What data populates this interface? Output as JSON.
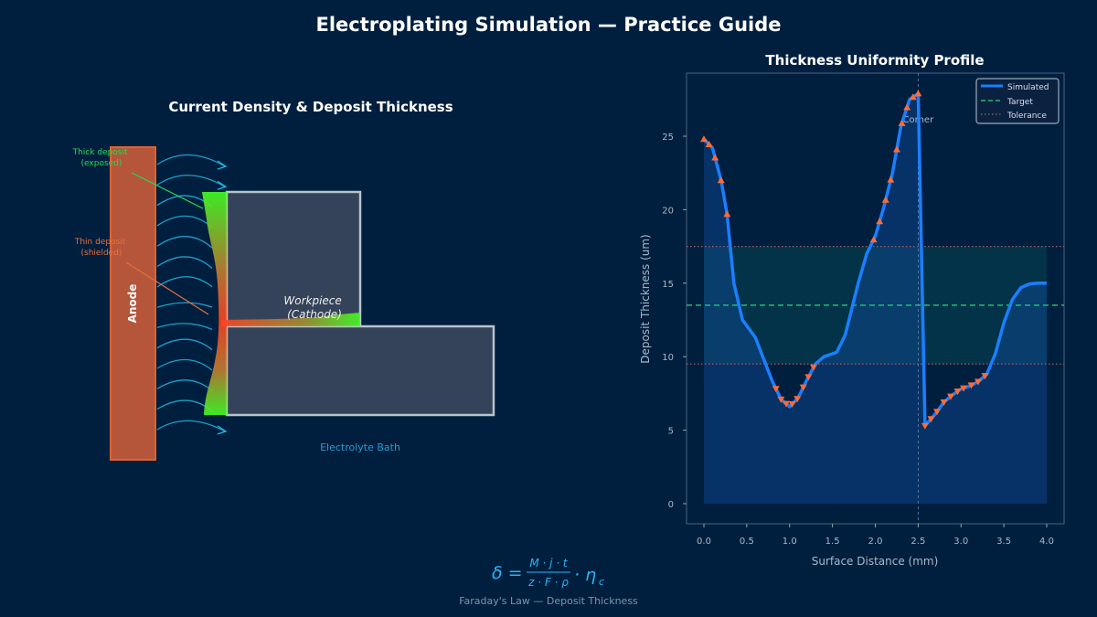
{
  "title": "Electroplating Simulation — Practice Guide",
  "diagram": {
    "title": "Current Density & Deposit Thickness",
    "anode_label": "Anode",
    "workpiece_label": [
      "Workpiece",
      "(Cathode)"
    ],
    "bath_label": "Electrolyte Bath",
    "thick_label": [
      "Thick deposit",
      "(exposed)"
    ],
    "thin_label": [
      "Thin deposit",
      "(shielded)"
    ],
    "colors": {
      "anode": "#b5553a",
      "workpiece": "#34435a",
      "thick": "#44ff22",
      "thin": "#ff4422",
      "field": "#1fb8e0"
    }
  },
  "formula": {
    "text": "δ = (M·j·t)/(z·F·ρ)·η_c",
    "lhs": "δ =",
    "num": "M · j · t",
    "den": "z · F · ρ",
    "tail": "· η",
    "sub": "c",
    "caption": "Faraday's Law — Deposit Thickness"
  },
  "chart_data": {
    "type": "line",
    "title": "Thickness Uniformity Profile",
    "xlabel": "Surface Distance (mm)",
    "ylabel": "Deposit Thickness (um)",
    "xlim": [
      -0.2,
      4.2
    ],
    "ylim": [
      -1.4,
      29.3
    ],
    "xticks": [
      "0.0",
      "0.5",
      "1.0",
      "1.5",
      "2.0",
      "2.5",
      "3.0",
      "3.5",
      "4.0"
    ],
    "yticks": [
      "0",
      "5",
      "10",
      "15",
      "20",
      "25"
    ],
    "legend": {
      "position": "top-right",
      "entries": [
        "Simulated",
        "Target",
        "Tolerance"
      ]
    },
    "annotation": {
      "text": "Corner",
      "x": 2.5
    },
    "target": 13.5,
    "tolerance": [
      9.5,
      17.5
    ],
    "series": [
      {
        "name": "Simulated",
        "color": "#1a7fff",
        "x": [
          0,
          0.1,
          0.2,
          0.27,
          0.35,
          0.45,
          0.6,
          0.7,
          0.8,
          0.9,
          1.0,
          1.1,
          1.2,
          1.3,
          1.4,
          1.55,
          1.65,
          1.8,
          1.9,
          2.0,
          2.1,
          2.2,
          2.3,
          2.4,
          2.5,
          2.58,
          2.7,
          2.8,
          2.9,
          3.0,
          3.1,
          3.2,
          3.3,
          3.4,
          3.5,
          3.6,
          3.7,
          3.8,
          3.9,
          4.0
        ],
        "y": [
          24.8,
          24.2,
          22.0,
          19.7,
          15.0,
          12.5,
          11.3,
          9.8,
          8.3,
          7.1,
          6.6,
          7.2,
          8.4,
          9.5,
          10.0,
          10.3,
          11.5,
          15.0,
          17.0,
          18.2,
          20.2,
          22.5,
          25.7,
          27.5,
          27.9,
          5.3,
          6.1,
          6.9,
          7.4,
          7.8,
          8.0,
          8.3,
          8.8,
          10.2,
          12.3,
          13.9,
          14.7,
          14.95,
          15.0,
          15.0
        ]
      }
    ],
    "markers_high_x": [
      0,
      0.06,
      0.13,
      0.2,
      0.27,
      1.98,
      2.05,
      2.12,
      2.18,
      2.25,
      2.31,
      2.37,
      2.44,
      2.5
    ],
    "markers_low_x": [
      0.84,
      0.9,
      0.96,
      1.03,
      1.09,
      1.16,
      1.22,
      1.28,
      2.58,
      2.65,
      2.72,
      2.8,
      2.88,
      2.96,
      3.03,
      3.12,
      3.2,
      3.28
    ]
  }
}
